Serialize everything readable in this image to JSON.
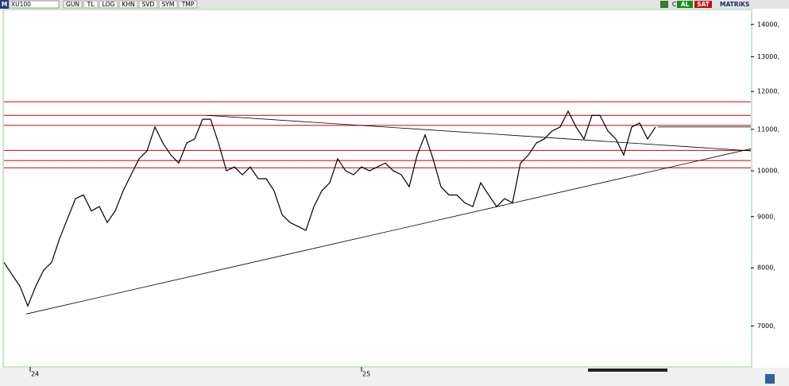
{
  "toolbar": {
    "logo": "M",
    "symbol": "XU100",
    "buttons": [
      "GUN",
      "TL",
      "LOG",
      "KHN",
      "SVD",
      "SYM",
      "TMP"
    ],
    "status": "C",
    "buy": "AL",
    "sell": "SAT",
    "brand": "MATRiKS"
  },
  "chart_data": {
    "type": "line",
    "log_scale": true,
    "x": [
      0,
      1,
      2,
      3,
      4,
      5,
      6,
      7,
      8,
      9,
      10,
      11,
      12,
      13,
      14,
      15,
      16,
      17,
      18,
      19,
      20,
      21,
      22,
      23,
      24,
      25,
      26,
      27,
      28,
      29,
      30,
      31,
      32,
      33,
      34,
      35,
      36,
      37,
      38,
      39,
      40,
      41,
      42,
      43,
      44,
      45,
      46,
      47,
      48,
      49,
      50,
      51,
      52,
      53,
      54,
      55,
      56,
      57,
      58,
      59,
      60,
      61,
      62,
      63,
      64,
      65,
      66,
      67,
      68,
      69,
      70,
      71,
      72,
      73,
      74,
      75,
      76,
      77,
      78,
      79,
      80,
      81,
      82
    ],
    "series": [
      {
        "name": "XU100",
        "color": "#000000",
        "values": [
          8100,
          7880,
          7670,
          7330,
          7670,
          7960,
          8100,
          8560,
          8960,
          9380,
          9460,
          9120,
          9210,
          8880,
          9120,
          9550,
          9910,
          10280,
          10470,
          11060,
          10660,
          10370,
          10180,
          10660,
          10760,
          11260,
          11260,
          10660,
          10000,
          10090,
          9910,
          10090,
          9820,
          9820,
          9550,
          9040,
          8880,
          8800,
          8720,
          9210,
          9550,
          9730,
          10280,
          10000,
          9910,
          10090,
          10000,
          10090,
          10180,
          10000,
          9910,
          9640,
          10370,
          10860,
          10280,
          9640,
          9460,
          9460,
          9290,
          9210,
          9730,
          9460,
          9210,
          9380,
          9290,
          10180,
          10370,
          10660,
          10760,
          10960,
          11060,
          11470,
          11060,
          10760,
          11360,
          11360,
          10960,
          10760,
          10370,
          11060,
          11160,
          10760,
          11060
        ]
      }
    ],
    "hlines": [
      11720,
      11360,
      11100,
      10480,
      10240,
      10070
    ],
    "hline_color": "#cc0000",
    "trendlines": [
      {
        "x": [
          2.8,
          94
        ],
        "y": [
          7195,
          10520
        ]
      },
      {
        "x": [
          25.5,
          94
        ],
        "y": [
          11360,
          10470
        ]
      },
      {
        "x": [
          82.3,
          94
        ],
        "y": [
          11060,
          11060
        ]
      }
    ],
    "xlim": [
      0,
      94
    ],
    "ylim": [
      6370,
      14490
    ],
    "xticks": [
      {
        "value": 3.3,
        "label": "24"
      },
      {
        "value": 45,
        "label": "25"
      }
    ],
    "yticks": [
      {
        "value": 7000,
        "label": "7000,"
      },
      {
        "value": 8000,
        "label": "8000,"
      },
      {
        "value": 9000,
        "label": "9000,"
      },
      {
        "value": 10000,
        "label": "10000,"
      },
      {
        "value": 11000,
        "label": "11000,"
      },
      {
        "value": 12000,
        "label": "12000,"
      },
      {
        "value": 13000,
        "label": "13000,"
      },
      {
        "value": 14000,
        "label": "14000,"
      }
    ]
  }
}
